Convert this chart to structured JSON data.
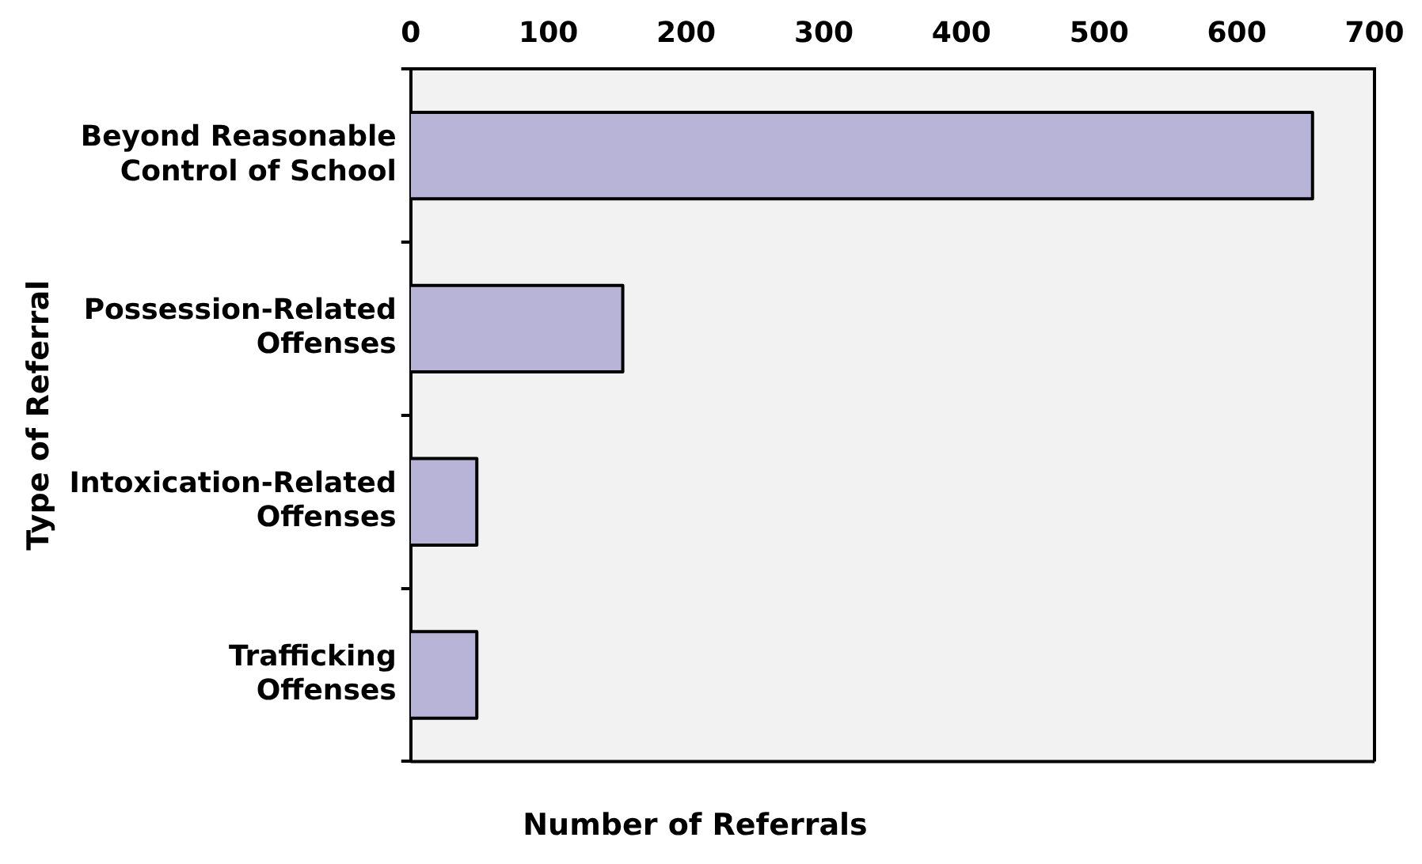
{
  "chart_data": {
    "type": "bar",
    "orientation": "horizontal",
    "xlabel": "Number of Referrals",
    "ylabel": "Type of Referral",
    "categories": [
      "Beyond Reasonable\nControl of School",
      "Possession-Related\nOffenses",
      "Intoxication-Related\nOffenses",
      "Trafficking\nOffenses"
    ],
    "values": [
      655,
      154,
      48,
      48
    ],
    "color": "#b8b4d8",
    "xlim": [
      0,
      700
    ],
    "xticks": [
      0,
      100,
      200,
      300,
      400,
      500,
      600,
      700
    ],
    "grid": false,
    "legend": false
  }
}
